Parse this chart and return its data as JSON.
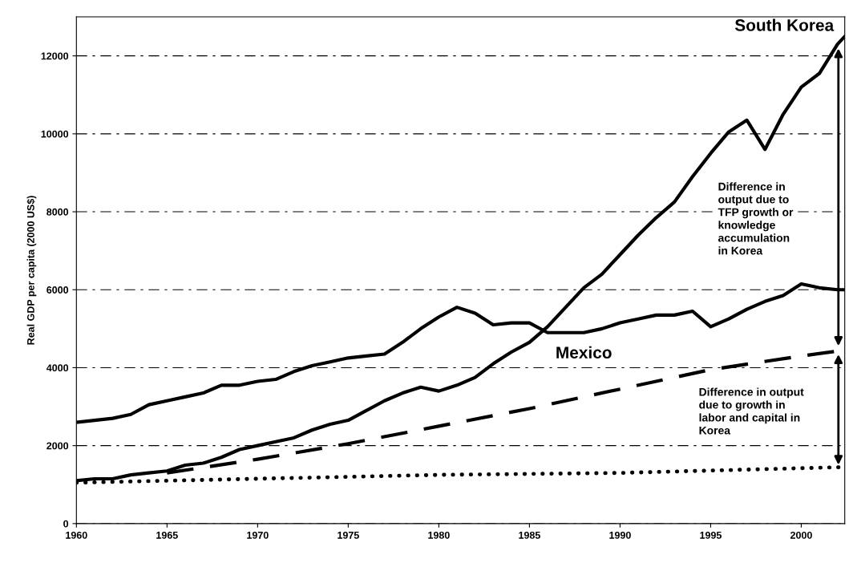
{
  "chart_data": {
    "type": "line",
    "ylabel": "Real GDP per capita (2000 US$)",
    "xlim": [
      1960,
      2002.4
    ],
    "xticks": [
      1960,
      1965,
      1970,
      1975,
      1980,
      1985,
      1990,
      1995,
      2000
    ],
    "ylim": [
      0,
      13000
    ],
    "yticks": [
      0,
      2000,
      4000,
      6000,
      8000,
      10000,
      12000
    ],
    "grid": "y",
    "legend": false,
    "series": [
      {
        "name": "South Korea",
        "color": "#000000",
        "line_style": "solid",
        "x": [
          1960,
          1961,
          1962,
          1963,
          1964,
          1965,
          1966,
          1967,
          1968,
          1969,
          1970,
          1971,
          1972,
          1973,
          1974,
          1975,
          1976,
          1977,
          1978,
          1979,
          1980,
          1981,
          1982,
          1983,
          1984,
          1985,
          1986,
          1987,
          1988,
          1989,
          1990,
          1991,
          1992,
          1993,
          1994,
          1995,
          1996,
          1997,
          1998,
          1999,
          2000,
          2001,
          2002,
          2002.4
        ],
        "values": [
          1100,
          1150,
          1150,
          1250,
          1300,
          1350,
          1500,
          1550,
          1700,
          1900,
          2000,
          2100,
          2200,
          2400,
          2550,
          2650,
          2900,
          3150,
          3350,
          3500,
          3400,
          3550,
          3750,
          4100,
          4400,
          4650,
          5050,
          5550,
          6050,
          6400,
          6900,
          7400,
          7850,
          8250,
          8900,
          9500,
          10050,
          10350,
          9600,
          10500,
          11200,
          11550,
          12300,
          12500
        ]
      },
      {
        "name": "Mexico",
        "color": "#000000",
        "line_style": "solid",
        "x": [
          1960,
          1961,
          1962,
          1963,
          1964,
          1965,
          1966,
          1967,
          1968,
          1969,
          1970,
          1971,
          1972,
          1973,
          1974,
          1975,
          1976,
          1977,
          1978,
          1979,
          1980,
          1981,
          1982,
          1983,
          1984,
          1985,
          1986,
          1987,
          1988,
          1989,
          1990,
          1991,
          1992,
          1993,
          1994,
          1995,
          1996,
          1997,
          1998,
          1999,
          2000,
          2001,
          2002,
          2002.4
        ],
        "values": [
          2600,
          2650,
          2700,
          2800,
          3050,
          3150,
          3250,
          3350,
          3550,
          3550,
          3650,
          3700,
          3900,
          4050,
          4150,
          4250,
          4300,
          4350,
          4650,
          5000,
          5300,
          5550,
          5400,
          5100,
          5150,
          5150,
          4900,
          4900,
          4900,
          5000,
          5150,
          5250,
          5350,
          5350,
          5450,
          5050,
          5250,
          5500,
          5700,
          5850,
          6150,
          6050,
          6000,
          6000
        ]
      },
      {
        "color": "#000000",
        "line_style": "dashed",
        "x": [
          1965,
          1970,
          1975,
          1980,
          1985,
          1990,
          1995,
          2000,
          2002.4
        ],
        "values": [
          1300,
          1650,
          2050,
          2500,
          2950,
          3450,
          3950,
          4300,
          4450
        ]
      },
      {
        "color": "#000000",
        "line_style": "dotted",
        "x": [
          1960,
          1970,
          1980,
          1990,
          2002.4
        ],
        "values": [
          1050,
          1150,
          1250,
          1300,
          1450
        ]
      }
    ],
    "annotations": [
      "Difference in\noutput due to\nTFP growth or\nknowledge\naccumulation\nin Korea",
      "Difference in output\ndue to growth in\nlabor and capital in\nKorea"
    ]
  }
}
